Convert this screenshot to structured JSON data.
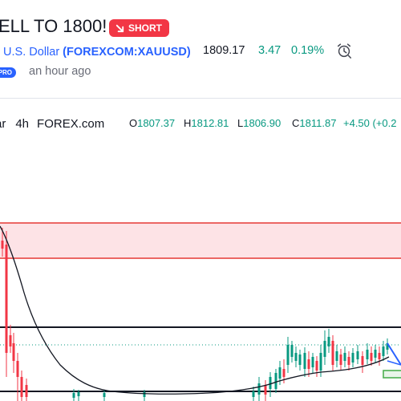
{
  "idea": {
    "title": "ELL TO 1800!",
    "badge": "SHORT",
    "symbol_name": "/ U.S. Dollar",
    "symbol_ticker": "(FOREXCOM:XAUUSD)",
    "price": "1809.17",
    "change": "3.47",
    "change_pct": "0.19%",
    "author_badge": "PRO",
    "published": "an hour ago"
  },
  "legend": {
    "symbol_tail": "ar",
    "timeframe": "4h",
    "source": "FOREX.com",
    "open_label": "O",
    "open": "1807.37",
    "high_label": "H",
    "high": "1812.81",
    "low_label": "L",
    "low": "1806.90",
    "close_label": "C",
    "close": "1811.87",
    "change": "+4.50 (+0.2"
  },
  "colors": {
    "up": "#089981",
    "down": "#f23645",
    "zone_fill": "#fde3e6",
    "zone_border": "#e53935",
    "ma": "#131722",
    "link": "#2962ff"
  },
  "icons": [
    "short-arrow-icon",
    "alarm-clock-icon"
  ],
  "chart_data": {
    "type": "candlestick",
    "indicators": [
      "moving-average"
    ],
    "annotations": [
      "resistance-zone",
      "horizontal-level",
      "horizontal-level",
      "projection-arrow",
      "target-box"
    ],
    "last_price_line": "dotted"
  }
}
